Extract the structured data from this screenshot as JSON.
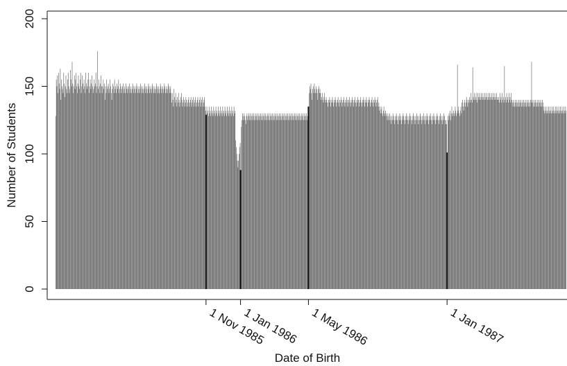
{
  "chart_data": {
    "type": "bar",
    "title": "",
    "xlabel": "Date of Birth",
    "ylabel": "Number of Students",
    "ylim": [
      0,
      200
    ],
    "yticks": [
      0,
      50,
      100,
      150,
      200
    ],
    "xlim": [
      "1985-02-08",
      "1987-07-31"
    ],
    "grid": false,
    "legend": "none",
    "bar_color": "#666666",
    "gap_color": "#ffffff",
    "marker_line_color": "#111111",
    "x_markers": [
      {
        "date": "1985-11-01",
        "label": "1 Nov 1985",
        "value": 129
      },
      {
        "date": "1986-01-01",
        "label": "1 Jan 1986",
        "value": 88
      },
      {
        "date": "1986-05-01",
        "label": "1 May 1986",
        "value": 135
      },
      {
        "date": "1987-01-01",
        "label": "1 Jan 1987",
        "value": 101
      }
    ],
    "series": [
      {
        "segments": [
          {
            "from": "1985-02-08",
            "to": "1985-04-30",
            "values": [
              128,
              155,
              150,
              158,
              145,
              160,
              152,
              148,
              163,
              140,
              155,
              150,
              148,
              145,
              160,
              152,
              142,
              150,
              158,
              148,
              145,
              155,
              160,
              150,
              145,
              148,
              162,
              155,
              150,
              168,
              152,
              145,
              150,
              158,
              148,
              155,
              160,
              150,
              145,
              152,
              158,
              150,
              148,
              155,
              160,
              145,
              150,
              158,
              152,
              148,
              155,
              150,
              145,
              160,
              152,
              148,
              150,
              155,
              160,
              145,
              150,
              155,
              148,
              152,
              158,
              150,
              145,
              148,
              155,
              150,
              152,
              160,
              145,
              150,
              176,
              148,
              155,
              150,
              145,
              152,
              158,
              150
            ]
          },
          {
            "from": "1985-05-01",
            "to": "1985-08-31",
            "values": [
              145,
              150,
              155,
              148,
              152,
              140,
              150,
              145,
              155,
              148,
              150,
              152,
              145,
              148,
              155,
              150,
              145,
              140,
              148,
              152,
              150,
              145,
              155,
              148,
              150,
              145,
              152,
              148,
              150,
              155,
              145,
              148,
              152,
              150,
              145,
              148,
              150,
              152,
              145,
              148,
              150,
              145,
              152,
              148,
              150,
              145,
              148,
              150,
              152,
              145,
              148,
              150,
              145,
              148,
              152,
              150,
              145,
              148,
              150,
              145,
              148,
              152,
              150,
              145,
              148,
              150,
              145,
              148,
              152,
              150,
              145,
              148,
              150,
              145,
              148,
              152,
              150,
              145,
              148,
              150,
              145,
              148,
              152,
              150,
              145,
              148,
              150,
              145,
              148,
              152,
              150,
              145,
              148,
              150,
              145,
              148,
              152,
              150,
              145,
              148,
              150,
              145,
              148,
              152,
              150,
              145,
              148,
              150,
              145,
              148,
              152,
              150,
              145,
              148,
              150,
              145,
              148,
              152,
              150,
              145,
              148,
              150,
              145
            ]
          },
          {
            "from": "1985-09-01",
            "to": "1985-10-31",
            "values": [
              138,
              145,
              140,
              135,
              148,
              142,
              138,
              145,
              140,
              135,
              142,
              138,
              145,
              140,
              135,
              138,
              142,
              145,
              140,
              135,
              138,
              142,
              140,
              135,
              138,
              142,
              140,
              135,
              138,
              140,
              142,
              135,
              138,
              140,
              142,
              135,
              138,
              140,
              142,
              135,
              138,
              140,
              142,
              135,
              138,
              140,
              142,
              135,
              138,
              140,
              142,
              135,
              138,
              140,
              142,
              135,
              138,
              140,
              142,
              135,
              132
            ]
          },
          {
            "from": "1985-11-01",
            "to": "1985-12-31",
            "values": [
              129,
              135,
              130,
              132,
              128,
              135,
              130,
              132,
              128,
              135,
              130,
              132,
              128,
              135,
              130,
              132,
              128,
              135,
              130,
              132,
              128,
              135,
              130,
              132,
              128,
              135,
              130,
              132,
              128,
              135,
              130,
              132,
              128,
              135,
              130,
              132,
              128,
              135,
              130,
              132,
              128,
              135,
              130,
              132,
              128,
              135,
              130,
              132,
              128,
              135,
              130,
              132,
              110,
              105,
              100,
              95,
              90,
              95,
              100,
              105,
              108
            ]
          },
          {
            "from": "1986-01-01",
            "to": "1986-04-30",
            "values": [
              88,
              120,
              125,
              130,
              128,
              125,
              130,
              128,
              125,
              122,
              128,
              130,
              125,
              128,
              130,
              125,
              128,
              130,
              125,
              128,
              130,
              125,
              128,
              130,
              125,
              128,
              130,
              125,
              128,
              130,
              125,
              128,
              130,
              125,
              128,
              130,
              125,
              128,
              130,
              125,
              128,
              130,
              125,
              128,
              130,
              125,
              128,
              130,
              125,
              128,
              130,
              125,
              128,
              130,
              125,
              128,
              130,
              125,
              128,
              130,
              125,
              128,
              130,
              125,
              128,
              130,
              125,
              128,
              130,
              125,
              128,
              130,
              125,
              128,
              130,
              125,
              128,
              130,
              125,
              128,
              130,
              125,
              128,
              130,
              125,
              128,
              130,
              125,
              128,
              130,
              125,
              128,
              130,
              125,
              128,
              130,
              125,
              128,
              130,
              125,
              128,
              130,
              125,
              128,
              130,
              125,
              128,
              130,
              125,
              128,
              130,
              125,
              128,
              130,
              125,
              128,
              130,
              125,
              128,
              130
            ]
          },
          {
            "from": "1986-05-01",
            "to": "1986-08-31",
            "values": [
              135,
              145,
              150,
              148,
              152,
              145,
              140,
              148,
              150,
              145,
              152,
              148,
              145,
              150,
              148,
              145,
              140,
              148,
              150,
              145,
              148,
              145,
              140,
              142,
              145,
              140,
              138,
              142,
              145,
              140,
              138,
              142,
              140,
              138,
              135,
              140,
              138,
              142,
              140,
              135,
              138,
              140,
              142,
              138,
              135,
              140,
              138,
              142,
              140,
              135,
              138,
              140,
              142,
              138,
              135,
              140,
              138,
              142,
              140,
              135,
              138,
              140,
              142,
              138,
              135,
              140,
              138,
              142,
              140,
              135,
              138,
              140,
              142,
              138,
              135,
              140,
              138,
              142,
              140,
              135,
              138,
              140,
              142,
              138,
              135,
              140,
              138,
              142,
              140,
              135,
              138,
              140,
              142,
              138,
              135,
              140,
              138,
              142,
              140,
              135,
              138,
              140,
              142,
              138,
              135,
              140,
              138,
              142,
              140,
              135,
              138,
              140,
              142,
              138,
              135,
              140,
              138,
              142,
              140,
              135,
              138,
              140,
              142
            ]
          },
          {
            "from": "1986-09-01",
            "to": "1986-12-31",
            "values": [
              135,
              138,
              132,
              135,
              130,
              133,
              135,
              130,
              128,
              132,
              135,
              130,
              128,
              132,
              130,
              128,
              125,
              130,
              128,
              125,
              130,
              128,
              125,
              122,
              128,
              125,
              130,
              128,
              125,
              122,
              128,
              125,
              130,
              128,
              125,
              122,
              128,
              125,
              130,
              128,
              125,
              122,
              128,
              125,
              130,
              128,
              125,
              122,
              128,
              125,
              130,
              128,
              125,
              122,
              128,
              125,
              130,
              128,
              125,
              122,
              128,
              125,
              130,
              128,
              125,
              122,
              128,
              125,
              130,
              128,
              125,
              122,
              128,
              125,
              130,
              128,
              125,
              122,
              128,
              125,
              130,
              128,
              125,
              122,
              128,
              125,
              130,
              128,
              125,
              122,
              128,
              125,
              130,
              128,
              125,
              122,
              128,
              125,
              130,
              128,
              125,
              122,
              128,
              125,
              130,
              128,
              125,
              122,
              128,
              125,
              130,
              128,
              125,
              122,
              128,
              125,
              130,
              128,
              125,
              122,
              125,
              122
            ]
          },
          {
            "from": "1987-01-01",
            "to": "1987-03-31",
            "values": [
              101,
              128,
              125,
              130,
              128,
              132,
              125,
              130,
              135,
              128,
              130,
              132,
              128,
              130,
              135,
              132,
              128,
              130,
              166,
              132,
              135,
              130,
              128,
              132,
              135,
              130,
              138,
              140,
              135,
              132,
              138,
              140,
              135,
              138,
              142,
              140,
              135,
              138,
              140,
              142,
              138,
              140,
              145,
              140,
              138,
              164,
              142,
              140,
              145,
              140,
              142,
              145,
              140,
              138,
              145,
              142,
              140,
              145,
              142,
              140,
              145,
              142,
              140,
              145,
              142,
              140,
              145,
              142,
              140,
              145,
              142,
              140,
              145,
              142,
              140,
              145,
              142,
              140,
              145,
              142,
              140,
              145,
              142,
              140,
              145,
              142,
              140,
              145,
              142,
              140
            ]
          },
          {
            "from": "1987-04-01",
            "to": "1987-07-31",
            "values": [
              140,
              142,
              138,
              145,
              140,
              142,
              138,
              145,
              140,
              142,
              138,
              165,
              140,
              142,
              138,
              145,
              140,
              142,
              138,
              145,
              140,
              142,
              138,
              145,
              140,
              138,
              135,
              140,
              138,
              135,
              140,
              138,
              135,
              140,
              138,
              135,
              140,
              138,
              135,
              140,
              138,
              135,
              140,
              138,
              135,
              140,
              138,
              135,
              140,
              138,
              135,
              140,
              138,
              135,
              140,
              138,
              135,
              140,
              138,
              168,
              140,
              138,
              135,
              140,
              138,
              135,
              140,
              138,
              135,
              140,
              138,
              135,
              140,
              138,
              135,
              140,
              138,
              135,
              140,
              138,
              135,
              132,
              130,
              135,
              132,
              130,
              135,
              132,
              130,
              135,
              132,
              130,
              135,
              132,
              130,
              135,
              132,
              130,
              135,
              132,
              130,
              135,
              132,
              130,
              135,
              132,
              130,
              135,
              132,
              130,
              135,
              132,
              130,
              135,
              132,
              130,
              135,
              132,
              130,
              135,
              132
            ]
          }
        ]
      }
    ]
  }
}
